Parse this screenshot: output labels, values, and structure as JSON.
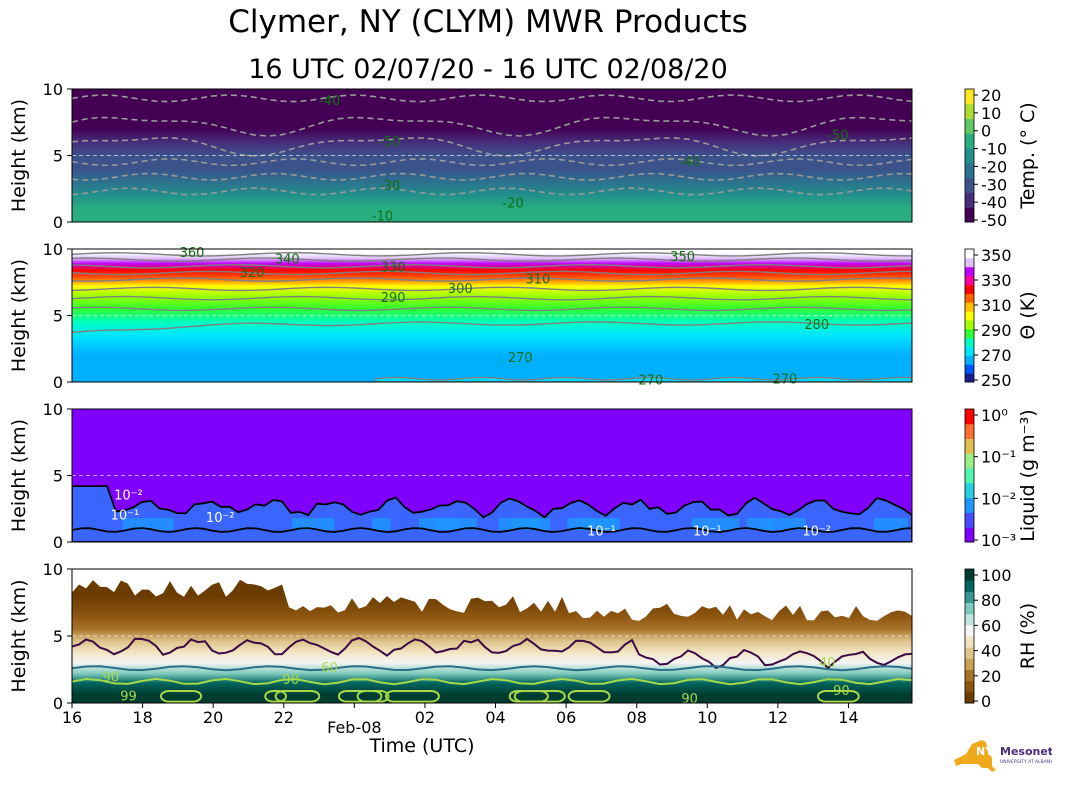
{
  "header": {
    "title": "Clymer, NY (CLYM) MWR Products",
    "subtitle": "16 UTC 02/07/20 - 16 UTC 02/08/20"
  },
  "x_axis": {
    "label": "Time (UTC)",
    "ticks": [
      "16",
      "18",
      "20",
      "22",
      "Feb-08",
      "02",
      "04",
      "06",
      "08",
      "10",
      "12",
      "14"
    ]
  },
  "logo": {
    "text": "NYS Mesonet",
    "sub": "UNIVERSITY AT ALBANY"
  },
  "chart_data": [
    {
      "type": "heatmap",
      "name": "temperature",
      "ylabel": "Height (km)",
      "ylim": [
        0,
        10
      ],
      "yticks": [
        "0",
        "5",
        "10"
      ],
      "colorbar_label": "Temp. (° C)",
      "colorbar_ticks": [
        "20",
        "10",
        "0",
        "-10",
        "-20",
        "-30",
        "-40",
        "-50"
      ],
      "vmin": -50,
      "vmax": 20,
      "colors": [
        "#440154",
        "#472d7b",
        "#3b528b",
        "#2c728e",
        "#21918c",
        "#28ae80",
        "#5ec962",
        "#addc30",
        "#fde725"
      ],
      "profile": [
        {
          "h": 0,
          "v": -6
        },
        {
          "h": 1,
          "v": -10
        },
        {
          "h": 2,
          "v": -15
        },
        {
          "h": 3,
          "v": -22
        },
        {
          "h": 4,
          "v": -28
        },
        {
          "h": 5,
          "v": -34
        },
        {
          "h": 6,
          "v": -42
        },
        {
          "h": 7,
          "v": -50
        },
        {
          "h": 8,
          "v": -52
        },
        {
          "h": 9,
          "v": -50
        },
        {
          "h": 10,
          "v": -46
        }
      ],
      "contour_labels": [
        {
          "text": "-40",
          "t": 7.3,
          "h": 9.1
        },
        {
          "text": "-50",
          "t": 9.0,
          "h": 6.0
        },
        {
          "text": "-50",
          "t": 21.7,
          "h": 6.5
        },
        {
          "text": "-40",
          "t": 17.5,
          "h": 4.5
        },
        {
          "text": "-30",
          "t": 9.0,
          "h": 2.7
        },
        {
          "text": "-20",
          "t": 12.5,
          "h": 1.4
        },
        {
          "text": "-10",
          "t": 8.8,
          "h": 0.4
        }
      ]
    },
    {
      "type": "heatmap",
      "name": "theta",
      "ylabel": "Height (km)",
      "ylim": [
        0,
        10
      ],
      "yticks": [
        "0",
        "5",
        "10"
      ],
      "colorbar_label": "Θ (K)",
      "colorbar_ticks": [
        "350",
        "330",
        "310",
        "290",
        "270",
        "250"
      ],
      "vmin": 250,
      "vmax": 360,
      "colors": [
        "#1a1a8c",
        "#0055ff",
        "#00b0ff",
        "#00e5ff",
        "#00ffc0",
        "#30ff30",
        "#a0ff00",
        "#ffff00",
        "#ffc000",
        "#ff6000",
        "#ff0000",
        "#ff00a0",
        "#c000ff",
        "#e0c0ff",
        "#ffffff"
      ],
      "profile": [
        {
          "h": 0,
          "v": 266
        },
        {
          "h": 2,
          "v": 270
        },
        {
          "h": 3.5,
          "v": 276
        },
        {
          "h": 4.5,
          "v": 282
        },
        {
          "h": 5.5,
          "v": 290
        },
        {
          "h": 6.5,
          "v": 298
        },
        {
          "h": 7.2,
          "v": 306
        },
        {
          "h": 7.8,
          "v": 316
        },
        {
          "h": 8.4,
          "v": 328
        },
        {
          "h": 8.9,
          "v": 338
        },
        {
          "h": 9.3,
          "v": 346
        },
        {
          "h": 9.7,
          "v": 354
        },
        {
          "h": 10,
          "v": 360
        }
      ],
      "contour_labels": [
        {
          "text": "360",
          "t": 3.4,
          "h": 9.7
        },
        {
          "text": "340",
          "t": 6.1,
          "h": 9.2
        },
        {
          "text": "320",
          "t": 5.1,
          "h": 8.2
        },
        {
          "text": "330",
          "t": 9.1,
          "h": 8.6
        },
        {
          "text": "350",
          "t": 17.3,
          "h": 9.4
        },
        {
          "text": "310",
          "t": 13.2,
          "h": 7.7
        },
        {
          "text": "300",
          "t": 11.0,
          "h": 7.0
        },
        {
          "text": "290",
          "t": 9.1,
          "h": 6.3
        },
        {
          "text": "280",
          "t": 21.1,
          "h": 4.3
        },
        {
          "text": "270",
          "t": 12.7,
          "h": 1.8
        },
        {
          "text": "270",
          "t": 16.4,
          "h": 0.1
        },
        {
          "text": "270",
          "t": 20.2,
          "h": 0.2
        }
      ]
    },
    {
      "type": "heatmap",
      "name": "liquid",
      "ylabel": "Height (km)",
      "ylim": [
        0,
        10
      ],
      "yticks": [
        "0",
        "5",
        "10"
      ],
      "colorbar_label": "Liquid (g m⁻³)",
      "colorbar_ticks": [
        "10⁰",
        "10⁻¹",
        "10⁻²",
        "10⁻³"
      ],
      "log_scale": true,
      "colors": [
        "#7f00ff",
        "#4b4bff",
        "#1e96ff",
        "#26cfe0",
        "#4ff5b0",
        "#9cf08a",
        "#e0c050",
        "#ff7030",
        "#ff0000"
      ],
      "base_color": "#7f00ff",
      "contour_labels": [
        {
          "text": "10⁻²",
          "t": 1.6,
          "h": 3.5
        },
        {
          "text": "10⁻¹",
          "t": 1.5,
          "h": 2.0
        },
        {
          "text": "10⁻²",
          "t": 4.2,
          "h": 1.8
        },
        {
          "text": "10⁻¹",
          "t": 15.0,
          "h": 0.8
        },
        {
          "text": "10⁻¹",
          "t": 18.0,
          "h": 0.8
        },
        {
          "text": "10⁻²",
          "t": 21.1,
          "h": 0.8
        }
      ]
    },
    {
      "type": "heatmap",
      "name": "rh",
      "ylabel": "Height (km)",
      "ylim": [
        0,
        10
      ],
      "yticks": [
        "0",
        "5",
        "10"
      ],
      "colorbar_label": "RH (%)",
      "colorbar_ticks": [
        "100",
        "80",
        "60",
        "40",
        "20",
        "0"
      ],
      "vmin": 0,
      "vmax": 105,
      "colors": [
        "#6b3c00",
        "#8c5510",
        "#a8742a",
        "#c9a054",
        "#dfc48c",
        "#f2e4c2",
        "#f5f5f5",
        "#c2e6e0",
        "#7fcabd",
        "#35978f",
        "#01665e",
        "#003c30"
      ],
      "profile": [
        {
          "h": 0,
          "v": 100
        },
        {
          "h": 0.6,
          "v": 98
        },
        {
          "h": 1.5,
          "v": 88
        },
        {
          "h": 2.2,
          "v": 72
        },
        {
          "h": 3.0,
          "v": 58
        },
        {
          "h": 3.8,
          "v": 45
        },
        {
          "h": 4.6,
          "v": 35
        },
        {
          "h": 5.5,
          "v": 25
        },
        {
          "h": 6.5,
          "v": 15
        },
        {
          "h": 8,
          "v": 8
        },
        {
          "h": 10,
          "v": 5
        }
      ],
      "contour_labels": [
        {
          "text": "90",
          "t": 1.1,
          "h": 1.9
        },
        {
          "text": "99",
          "t": 1.6,
          "h": 0.5
        },
        {
          "text": "90",
          "t": 6.2,
          "h": 1.7
        },
        {
          "text": "60",
          "t": 7.3,
          "h": 2.6
        },
        {
          "text": "40",
          "t": 21.4,
          "h": 3.0
        },
        {
          "text": "90",
          "t": 21.8,
          "h": 0.9
        },
        {
          "text": "90",
          "t": 17.5,
          "h": 0.3
        }
      ]
    }
  ]
}
